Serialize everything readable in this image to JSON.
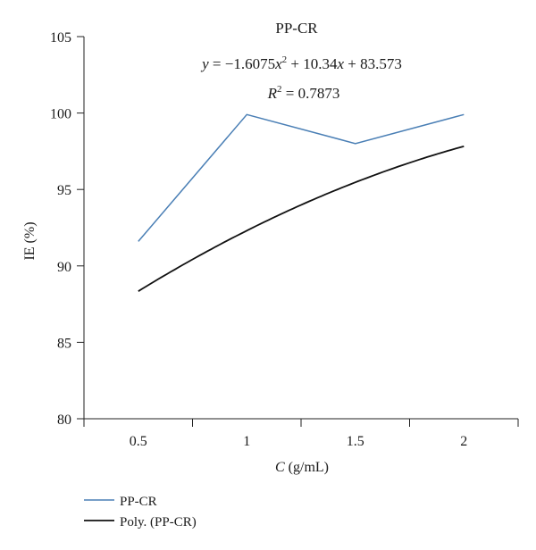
{
  "chart_data": {
    "type": "line",
    "title": "PP-CR",
    "equation": {
      "y_var": "y",
      "eq1": " = −1.6075",
      "x_var1": "x",
      "sup1": "2",
      "eq2": " + 10.34",
      "x_var2": "x",
      "eq3": " + 83.573"
    },
    "r_squared": {
      "r": "R",
      "sup": "2",
      "value": " = 0.7873"
    },
    "xlabel": {
      "var": "C",
      "unit": " (g/mL)"
    },
    "ylabel": "IE (%)",
    "x_ticks": [
      {
        "value": 0.5,
        "label": "0.5"
      },
      {
        "value": 1,
        "label": "1"
      },
      {
        "value": 1.5,
        "label": "1.5"
      },
      {
        "value": 2,
        "label": "2"
      }
    ],
    "y_ticks": [
      {
        "value": 80,
        "label": "80"
      },
      {
        "value": 85,
        "label": "85"
      },
      {
        "value": 90,
        "label": "90"
      },
      {
        "value": 95,
        "label": "95"
      },
      {
        "value": 100,
        "label": "100"
      },
      {
        "value": 105,
        "label": "105"
      }
    ],
    "xlim": [
      0.25,
      2.25
    ],
    "ylim": [
      80,
      105
    ],
    "grid": false,
    "legend_position": "bottom-left",
    "series": [
      {
        "name": "PP-CR",
        "color": "#4a7fb5",
        "x": [
          0.5,
          1,
          1.5,
          2
        ],
        "y": [
          91.6,
          99.9,
          98.0,
          99.9
        ]
      }
    ],
    "trendline": {
      "name": "Poly. (PP-CR)",
      "color": "#111111",
      "coefficients": [
        -1.6075,
        10.34,
        83.573
      ],
      "x_range": [
        0.5,
        2
      ]
    }
  }
}
